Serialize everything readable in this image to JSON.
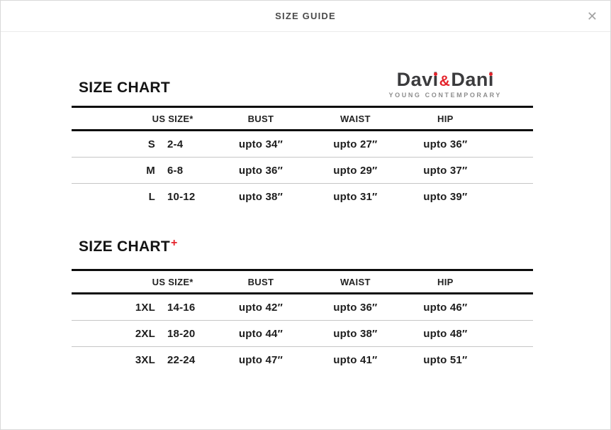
{
  "modal": {
    "title": "SIZE GUIDE",
    "close_glyph": "✕"
  },
  "brand": {
    "name_left": "Davi",
    "ampersand": "&",
    "name_right": "Dani",
    "tagline": "YOUNG CONTEMPORARY",
    "accent_color": "#e4232b",
    "text_color": "#3b3b3d"
  },
  "charts": [
    {
      "title": "SIZE CHART",
      "plus_suffix": "",
      "columns": [
        "US SIZE*",
        "BUST",
        "WAIST",
        "HIP"
      ],
      "rows": [
        {
          "size": "S",
          "range": "2-4",
          "bust": "upto 34″",
          "waist": "upto 27″",
          "hip": "upto 36″"
        },
        {
          "size": "M",
          "range": "6-8",
          "bust": "upto 36″",
          "waist": "upto 29″",
          "hip": "upto 37″"
        },
        {
          "size": "L",
          "range": "10-12",
          "bust": "upto 38″",
          "waist": "upto 31″",
          "hip": "upto 39″"
        }
      ]
    },
    {
      "title": "SIZE CHART",
      "plus_suffix": "+",
      "columns": [
        "US SIZE*",
        "BUST",
        "WAIST",
        "HIP"
      ],
      "rows": [
        {
          "size": "1XL",
          "range": "14-16",
          "bust": "upto 42″",
          "waist": "upto 36″",
          "hip": "upto 46″"
        },
        {
          "size": "2XL",
          "range": "18-20",
          "bust": "upto 44″",
          "waist": "upto 38″",
          "hip": "upto 48″"
        },
        {
          "size": "3XL",
          "range": "22-24",
          "bust": "upto 47″",
          "waist": "upto 41″",
          "hip": "upto 51″"
        }
      ]
    }
  ]
}
